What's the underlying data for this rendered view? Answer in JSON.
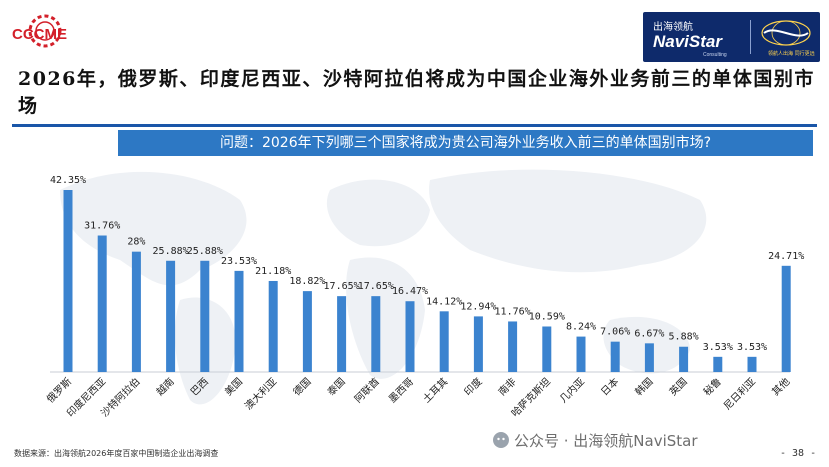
{
  "header": {
    "logo_left_text": "CCCME",
    "brand_cn": "出海领航",
    "brand_en": "NaviStar",
    "brand_sub": "Consulting",
    "brand_tagline": "领航人出海 同行更远"
  },
  "title": "2026年，俄罗斯、印度尼西亚、沙特阿拉伯将成为中国企业海外业务前三的单体国别市场",
  "question": "问题：2026年下列哪三个国家将成为贵公司海外业务收入前三的单体国别市场?",
  "footer": {
    "source": "数据来源：出海领航2026年度百家中国制造企业出海调查",
    "watermark": "公众号 · 出海领航NaviStar",
    "page": "- 38 -"
  },
  "colors": {
    "bar": "#3b83cf",
    "title_rule": "#1a56a8",
    "question_bg": "#2d78c4",
    "brand_bg": "#0e2a6b",
    "logo_red": "#d3202a"
  },
  "chart_data": {
    "type": "bar",
    "title": "",
    "xlabel": "",
    "ylabel": "",
    "ylim": [
      0,
      45
    ],
    "grid": false,
    "legend": "none",
    "categories": [
      "俄罗斯",
      "印度尼西亚",
      "沙特阿拉伯",
      "越南",
      "巴西",
      "美国",
      "澳大利亚",
      "德国",
      "泰国",
      "阿联酋",
      "墨西哥",
      "土耳其",
      "印度",
      "南非",
      "哈萨克斯坦",
      "几内亚",
      "日本",
      "韩国",
      "英国",
      "秘鲁",
      "尼日利亚",
      "其他"
    ],
    "values": [
      42.35,
      31.76,
      28,
      25.88,
      25.88,
      23.53,
      21.18,
      18.82,
      17.65,
      17.65,
      16.47,
      14.12,
      12.94,
      11.76,
      10.59,
      8.24,
      7.06,
      6.67,
      5.88,
      3.53,
      3.53,
      24.71
    ],
    "value_labels": [
      "42.35%",
      "31.76%",
      "28%",
      "25.88%",
      "25.88%",
      "23.53%",
      "21.18%",
      "18.82%",
      "17.65%",
      "17.65%",
      "16.47%",
      "14.12%",
      "12.94%",
      "11.76%",
      "10.59%",
      "8.24%",
      "7.06%",
      "6.67%",
      "5.88%",
      "3.53%",
      "3.53%",
      "24.71%"
    ]
  }
}
